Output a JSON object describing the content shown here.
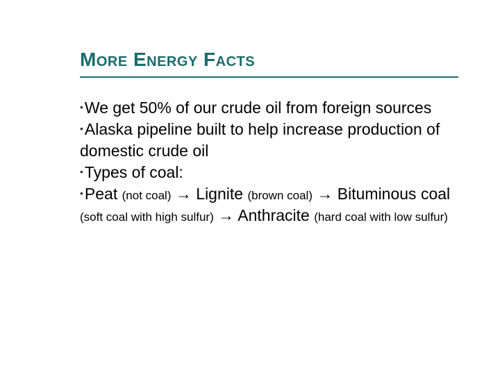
{
  "colors": {
    "title": "#1a6c6c",
    "underline": "#1a6c6c",
    "body": "#000000",
    "bullet": "#333333"
  },
  "title": "More Energy Facts",
  "bullets": [
    {
      "text": "We get 50% of our crude oil from foreign sources"
    },
    {
      "text": "Alaska pipeline built to help increase production of domestic crude oil"
    },
    {
      "text": "Types of coal:"
    }
  ],
  "sequence": {
    "bullet_mark": "•",
    "arrow": "→",
    "items": [
      {
        "name": "Peat",
        "note": "(not coal)"
      },
      {
        "name": "Lignite",
        "note": "(brown coal)"
      },
      {
        "name": "Bituminous coal",
        "note": "(soft coal with high sulfur)"
      },
      {
        "name": "Anthracite",
        "note": "(hard coal with low sulfur)"
      }
    ]
  },
  "fonts": {
    "title_size": 28,
    "body_size": 23,
    "paren_size": 17
  }
}
